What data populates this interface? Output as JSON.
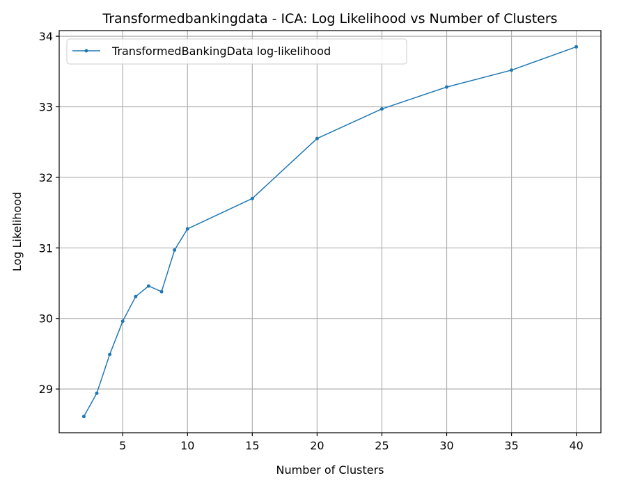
{
  "chart_data": {
    "type": "line",
    "title": "Transformedbankingdata - ICA: Log Likelihood vs Number of Clusters",
    "xlabel": "Number of Clusters",
    "ylabel": "Log Likelihood",
    "xlim": [
      0.1,
      41.9
    ],
    "ylim": [
      28.38,
      34.08
    ],
    "xticks": [
      5,
      10,
      15,
      20,
      25,
      30,
      35,
      40
    ],
    "yticks": [
      29,
      30,
      31,
      32,
      33,
      34
    ],
    "grid": true,
    "legend_position": "top-left",
    "series": [
      {
        "name": "TransformedBankingData log-likelihood",
        "color": "#1f77b4",
        "x": [
          2,
          3,
          4,
          5,
          6,
          7,
          8,
          9,
          10,
          15,
          20,
          25,
          30,
          35,
          40
        ],
        "y": [
          28.61,
          28.94,
          29.49,
          29.96,
          30.31,
          30.46,
          30.38,
          30.97,
          31.27,
          31.7,
          32.55,
          32.97,
          33.28,
          33.52,
          33.85
        ]
      }
    ]
  }
}
